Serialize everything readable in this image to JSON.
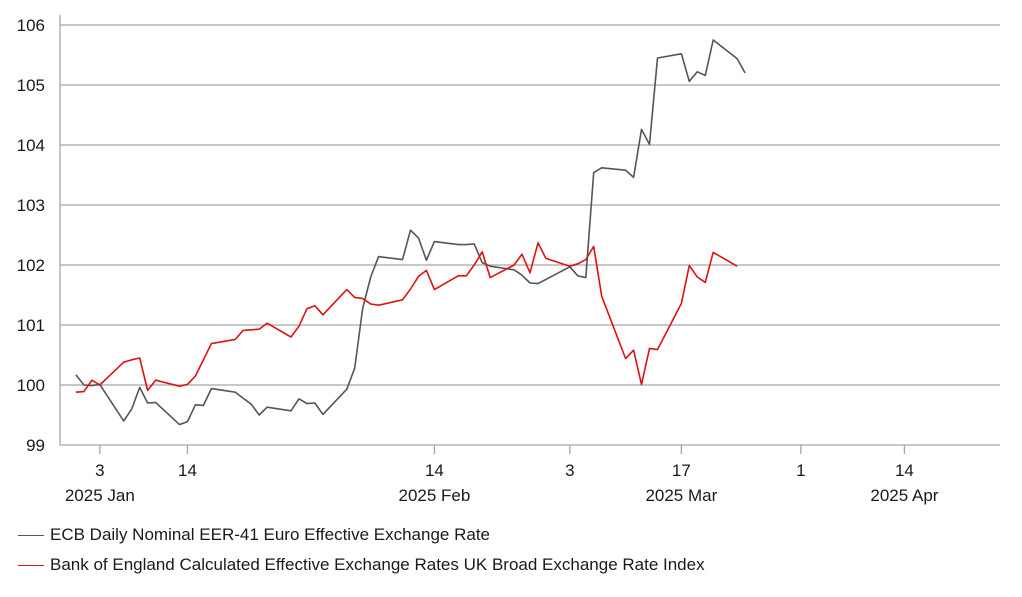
{
  "chart_data": {
    "type": "line",
    "title": "",
    "xlabel": "",
    "ylabel": "",
    "ylim": [
      99,
      106
    ],
    "yticks": [
      99,
      100,
      101,
      102,
      103,
      104,
      105,
      106
    ],
    "xlim": [
      "2024-12-29",
      "2025-04-26"
    ],
    "grid": "horizontal",
    "legend_position": "bottom-left",
    "x_ticks": [
      {
        "date": "2025-01-03",
        "label": "3",
        "period_label": "2025 Jan"
      },
      {
        "date": "2025-01-14",
        "label": "14",
        "period_label": ""
      },
      {
        "date": "2025-02-14",
        "label": "14",
        "period_label": "2025 Feb"
      },
      {
        "date": "2025-03-03",
        "label": "3",
        "period_label": ""
      },
      {
        "date": "2025-03-17",
        "label": "17",
        "period_label": "2025 Mar"
      },
      {
        "date": "2025-04-01",
        "label": "1",
        "period_label": ""
      },
      {
        "date": "2025-04-14",
        "label": "14",
        "period_label": "2025 Apr"
      }
    ],
    "series": [
      {
        "name": "ECB Daily Nominal EER-41 Euro Effective Exchange Rate",
        "color": "#555555",
        "points": [
          [
            "2024-12-31",
            100.17
          ],
          [
            "2025-01-01",
            100.0
          ],
          [
            "2025-01-02",
            99.99
          ],
          [
            "2025-01-03",
            100.01
          ],
          [
            "2025-01-06",
            99.4
          ],
          [
            "2025-01-07",
            99.6
          ],
          [
            "2025-01-08",
            99.96
          ],
          [
            "2025-01-09",
            99.7
          ],
          [
            "2025-01-10",
            99.71
          ],
          [
            "2025-01-13",
            99.34
          ],
          [
            "2025-01-14",
            99.39
          ],
          [
            "2025-01-15",
            99.67
          ],
          [
            "2025-01-16",
            99.66
          ],
          [
            "2025-01-17",
            99.94
          ],
          [
            "2025-01-20",
            99.88
          ],
          [
            "2025-01-21",
            99.78
          ],
          [
            "2025-01-22",
            99.68
          ],
          [
            "2025-01-23",
            99.5
          ],
          [
            "2025-01-24",
            99.63
          ],
          [
            "2025-01-27",
            99.57
          ],
          [
            "2025-01-28",
            99.77
          ],
          [
            "2025-01-29",
            99.69
          ],
          [
            "2025-01-30",
            99.7
          ],
          [
            "2025-01-31",
            99.51
          ],
          [
            "2025-02-03",
            99.93
          ],
          [
            "2025-02-04",
            100.28
          ],
          [
            "2025-02-05",
            101.28
          ],
          [
            "2025-02-06",
            101.8
          ],
          [
            "2025-02-07",
            102.14
          ],
          [
            "2025-02-10",
            102.09
          ],
          [
            "2025-02-11",
            102.58
          ],
          [
            "2025-02-12",
            102.45
          ],
          [
            "2025-02-13",
            102.08
          ],
          [
            "2025-02-14",
            102.39
          ],
          [
            "2025-02-17",
            102.34
          ],
          [
            "2025-02-18",
            102.34
          ],
          [
            "2025-02-19",
            102.35
          ],
          [
            "2025-02-20",
            102.04
          ],
          [
            "2025-02-21",
            101.98
          ],
          [
            "2025-02-24",
            101.92
          ],
          [
            "2025-02-25",
            101.83
          ],
          [
            "2025-02-26",
            101.7
          ],
          [
            "2025-02-27",
            101.69
          ],
          [
            "2025-02-28",
            101.76
          ],
          [
            "2025-03-03",
            101.97
          ],
          [
            "2025-03-04",
            101.82
          ],
          [
            "2025-03-05",
            101.79
          ],
          [
            "2025-03-06",
            103.54
          ],
          [
            "2025-03-07",
            103.62
          ],
          [
            "2025-03-10",
            103.58
          ],
          [
            "2025-03-11",
            103.46
          ],
          [
            "2025-03-12",
            104.26
          ],
          [
            "2025-03-13",
            104.01
          ],
          [
            "2025-03-14",
            105.45
          ],
          [
            "2025-03-17",
            105.52
          ],
          [
            "2025-03-18",
            105.06
          ],
          [
            "2025-03-19",
            105.22
          ],
          [
            "2025-03-20",
            105.16
          ],
          [
            "2025-03-21",
            105.75
          ],
          [
            "2025-03-24",
            105.44
          ],
          [
            "2025-03-25",
            105.2
          ]
        ]
      },
      {
        "name": "Bank of England Calculated Effective Exchange Rates UK Broad Exchange Rate Index",
        "color": "#dd1111",
        "points": [
          [
            "2024-12-31",
            99.88
          ],
          [
            "2025-01-01",
            99.89
          ],
          [
            "2025-01-02",
            100.08
          ],
          [
            "2025-01-03",
            100.0
          ],
          [
            "2025-01-06",
            100.38
          ],
          [
            "2025-01-07",
            100.42
          ],
          [
            "2025-01-08",
            100.45
          ],
          [
            "2025-01-09",
            99.91
          ],
          [
            "2025-01-10",
            100.08
          ],
          [
            "2025-01-13",
            99.98
          ],
          [
            "2025-01-14",
            100.01
          ],
          [
            "2025-01-15",
            100.15
          ],
          [
            "2025-01-16",
            100.42
          ],
          [
            "2025-01-17",
            100.69
          ],
          [
            "2025-01-20",
            100.76
          ],
          [
            "2025-01-21",
            100.91
          ],
          [
            "2025-01-22",
            100.92
          ],
          [
            "2025-01-23",
            100.93
          ],
          [
            "2025-01-24",
            101.03
          ],
          [
            "2025-01-27",
            100.8
          ],
          [
            "2025-01-28",
            100.98
          ],
          [
            "2025-01-29",
            101.27
          ],
          [
            "2025-01-30",
            101.32
          ],
          [
            "2025-01-31",
            101.17
          ],
          [
            "2025-02-03",
            101.59
          ],
          [
            "2025-02-04",
            101.46
          ],
          [
            "2025-02-05",
            101.44
          ],
          [
            "2025-02-06",
            101.35
          ],
          [
            "2025-02-07",
            101.33
          ],
          [
            "2025-02-10",
            101.42
          ],
          [
            "2025-02-11",
            101.6
          ],
          [
            "2025-02-12",
            101.81
          ],
          [
            "2025-02-13",
            101.91
          ],
          [
            "2025-02-14",
            101.59
          ],
          [
            "2025-02-17",
            101.82
          ],
          [
            "2025-02-18",
            101.82
          ],
          [
            "2025-02-19",
            102.0
          ],
          [
            "2025-02-20",
            102.22
          ],
          [
            "2025-02-21",
            101.79
          ],
          [
            "2025-02-24",
            102.0
          ],
          [
            "2025-02-25",
            102.18
          ],
          [
            "2025-02-26",
            101.87
          ],
          [
            "2025-02-27",
            102.37
          ],
          [
            "2025-02-28",
            102.11
          ],
          [
            "2025-03-03",
            101.98
          ],
          [
            "2025-03-04",
            102.02
          ],
          [
            "2025-03-05",
            102.09
          ],
          [
            "2025-03-06",
            102.31
          ],
          [
            "2025-03-07",
            101.48
          ],
          [
            "2025-03-10",
            100.44
          ],
          [
            "2025-03-11",
            100.58
          ],
          [
            "2025-03-12",
            100.01
          ],
          [
            "2025-03-13",
            100.61
          ],
          [
            "2025-03-14",
            100.59
          ],
          [
            "2025-03-17",
            101.36
          ],
          [
            "2025-03-18",
            101.99
          ],
          [
            "2025-03-19",
            101.8
          ],
          [
            "2025-03-20",
            101.71
          ],
          [
            "2025-03-21",
            102.21
          ],
          [
            "2025-03-24",
            101.98
          ]
        ]
      }
    ]
  }
}
